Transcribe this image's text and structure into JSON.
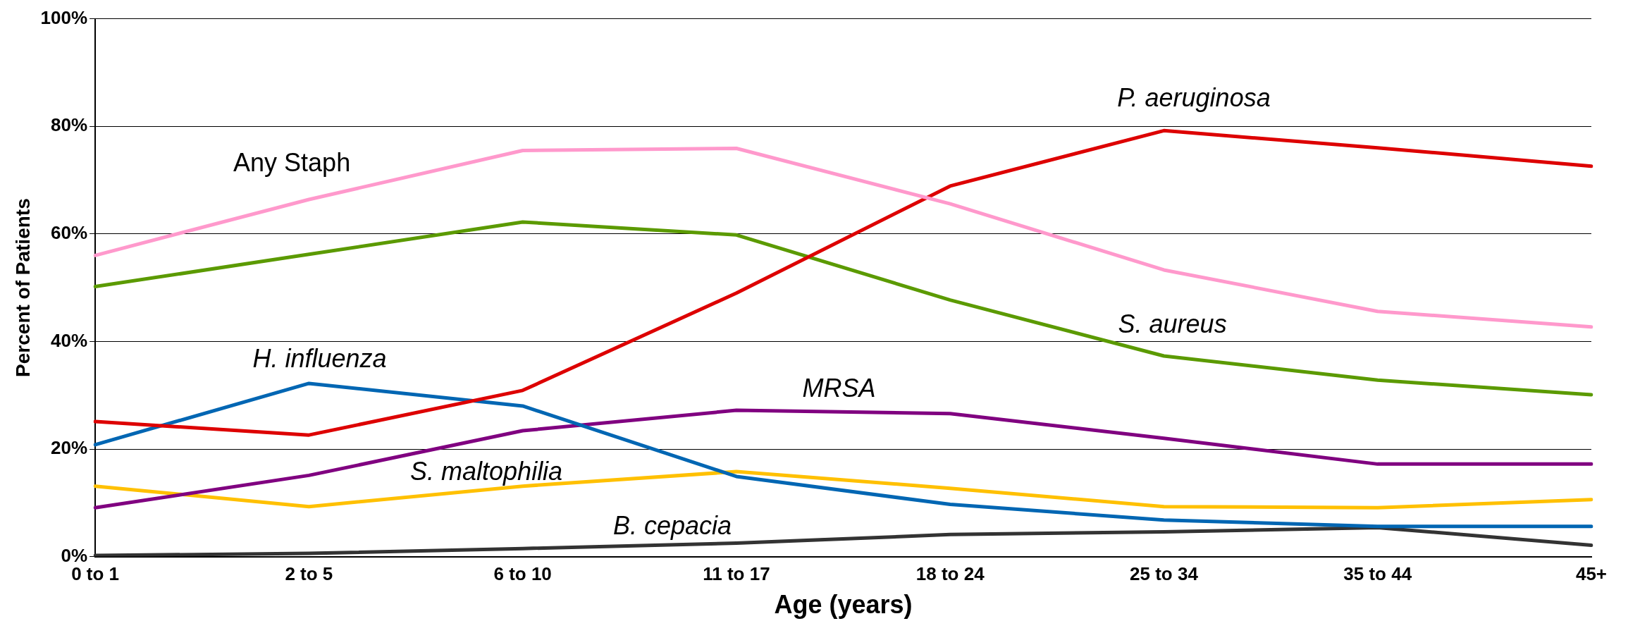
{
  "chart_data": {
    "type": "line",
    "xlabel": "Age (years)",
    "ylabel": "Percent of Patients",
    "categories": [
      "0 to 1",
      "2 to 5",
      "6 to 10",
      "11 to 17",
      "18 to 24",
      "25 to 34",
      "35 to 44",
      "45+"
    ],
    "ylim": [
      0,
      100
    ],
    "yticks": [
      {
        "value": 0,
        "label": "0%"
      },
      {
        "value": 20,
        "label": "20%"
      },
      {
        "value": 40,
        "label": "40%"
      },
      {
        "value": 60,
        "label": "60%"
      },
      {
        "value": 80,
        "label": "80%"
      },
      {
        "value": 100,
        "label": "100%"
      }
    ],
    "grid": "y",
    "legend": false,
    "marker": "none",
    "line_style": "solid",
    "series": [
      {
        "name": "Any Staph",
        "color": "#ff99cc",
        "values": [
          56,
          66.4,
          75.5,
          75.9,
          65.6,
          53.3,
          45.6,
          42.7
        ]
      },
      {
        "name": "P. aeruginosa",
        "color": "#dd0000",
        "values": [
          25.1,
          22.6,
          30.9,
          49,
          68.9,
          79.2,
          76,
          72.6
        ]
      },
      {
        "name": "S. aureus",
        "color": "#5b9a00",
        "values": [
          50.2,
          56.2,
          62.2,
          59.8,
          47.7,
          37.3,
          32.8,
          30.1
        ]
      },
      {
        "name": "H. influenza",
        "color": "#0066b3",
        "values": [
          20.8,
          32.2,
          28,
          14.9,
          9.7,
          6.8,
          5.6,
          5.6
        ]
      },
      {
        "name": "MRSA",
        "color": "#800080",
        "values": [
          9.1,
          15.1,
          23.4,
          27.2,
          26.6,
          22,
          17.2,
          17.2
        ]
      },
      {
        "name": "S. maltophilia",
        "color": "#ffc000",
        "values": [
          13.1,
          9.3,
          13.1,
          15.8,
          12.7,
          9.3,
          9.1,
          10.6
        ]
      },
      {
        "name": "B. cepacia",
        "color": "#333333",
        "values": [
          0.2,
          0.6,
          1.5,
          2.5,
          4.1,
          4.6,
          5.4,
          2.1
        ]
      }
    ]
  }
}
